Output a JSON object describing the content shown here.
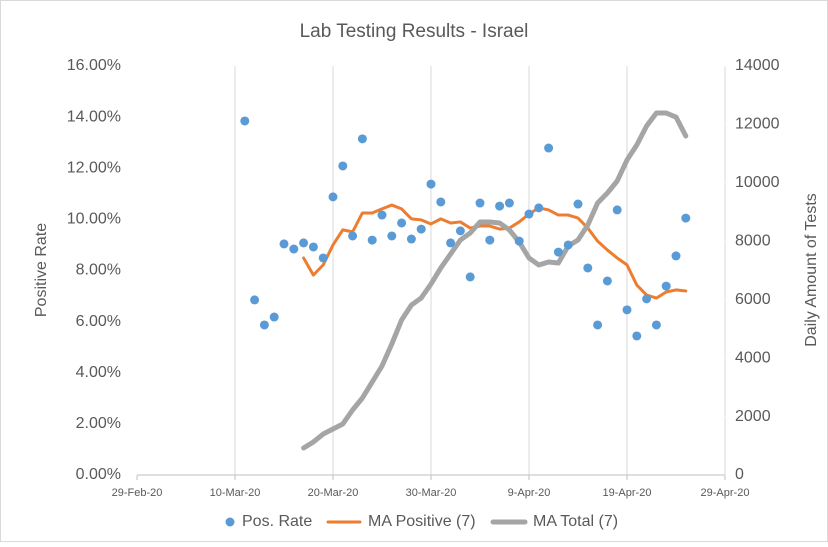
{
  "chart_data": {
    "type": "combo",
    "title": "Lab Testing Results - Israel",
    "y_label": "Positive Rate",
    "y2_label": "Daily Amount of Tests",
    "xlim": [
      "2020-02-29",
      "2020-04-29"
    ],
    "xticks": [
      {
        "value": "2020-02-29",
        "label": "29-Feb-20"
      },
      {
        "value": "2020-03-10",
        "label": "10-Mar-20"
      },
      {
        "value": "2020-03-20",
        "label": "20-Mar-20"
      },
      {
        "value": "2020-03-30",
        "label": "30-Mar-20"
      },
      {
        "value": "2020-04-09",
        "label": "9-Apr-20"
      },
      {
        "value": "2020-04-19",
        "label": "19-Apr-20"
      },
      {
        "value": "2020-04-29",
        "label": "29-Apr-20"
      }
    ],
    "ylim": [
      0,
      16
    ],
    "yticks": [
      {
        "value": 0,
        "label": "0.00%"
      },
      {
        "value": 2,
        "label": "2.00%"
      },
      {
        "value": 4,
        "label": "4.00%"
      },
      {
        "value": 6,
        "label": "6.00%"
      },
      {
        "value": 8,
        "label": "8.00%"
      },
      {
        "value": 10,
        "label": "10.00%"
      },
      {
        "value": 12,
        "label": "12.00%"
      },
      {
        "value": 14,
        "label": "14.00%"
      },
      {
        "value": 16,
        "label": "16.00%"
      }
    ],
    "y2lim": [
      0,
      14000
    ],
    "y2ticks": [
      0,
      2000,
      4000,
      6000,
      8000,
      10000,
      12000,
      14000
    ],
    "grid": "x",
    "legend": "bottom",
    "series": [
      {
        "name": "Pos. Rate",
        "type": "scatter",
        "color": "#5b9bd5",
        "x": [
          "2020-03-11",
          "2020-03-12",
          "2020-03-13",
          "2020-03-14",
          "2020-03-15",
          "2020-03-16",
          "2020-03-17",
          "2020-03-18",
          "2020-03-19",
          "2020-03-20",
          "2020-03-21",
          "2020-03-22",
          "2020-03-23",
          "2020-03-24",
          "2020-03-25",
          "2020-03-26",
          "2020-03-27",
          "2020-03-28",
          "2020-03-29",
          "2020-03-30",
          "2020-03-31",
          "2020-04-01",
          "2020-04-02",
          "2020-04-03",
          "2020-04-04",
          "2020-04-05",
          "2020-04-06",
          "2020-04-07",
          "2020-04-08",
          "2020-04-09",
          "2020-04-10",
          "2020-04-11",
          "2020-04-12",
          "2020-04-13",
          "2020-04-14",
          "2020-04-15",
          "2020-04-16",
          "2020-04-17",
          "2020-04-18",
          "2020-04-19",
          "2020-04-20",
          "2020-04-21",
          "2020-04-22",
          "2020-04-23",
          "2020-04-24",
          "2020-04-25"
        ],
        "values": [
          13.85,
          6.85,
          5.87,
          6.18,
          9.04,
          8.84,
          9.08,
          8.92,
          8.49,
          10.88,
          12.09,
          9.35,
          13.15,
          9.19,
          10.17,
          9.35,
          9.86,
          9.23,
          9.62,
          11.38,
          10.68,
          9.08,
          9.55,
          7.75,
          10.64,
          9.19,
          10.52,
          10.64,
          9.15,
          10.21,
          10.45,
          12.79,
          8.72,
          9.0,
          10.6,
          8.1,
          5.87,
          7.59,
          10.37,
          6.46,
          5.44,
          6.89,
          5.87,
          7.39,
          8.57,
          10.05
        ]
      },
      {
        "name": "MA Positive (7)",
        "type": "line",
        "color": "#ed7d31",
        "width": 3,
        "x": [
          "2020-03-17",
          "2020-03-18",
          "2020-03-19",
          "2020-03-20",
          "2020-03-21",
          "2020-03-22",
          "2020-03-23",
          "2020-03-24",
          "2020-03-25",
          "2020-03-26",
          "2020-03-27",
          "2020-03-28",
          "2020-03-29",
          "2020-03-30",
          "2020-03-31",
          "2020-04-01",
          "2020-04-02",
          "2020-04-03",
          "2020-04-04",
          "2020-04-05",
          "2020-04-06",
          "2020-04-07",
          "2020-04-08",
          "2020-04-09",
          "2020-04-10",
          "2020-04-11",
          "2020-04-12",
          "2020-04-13",
          "2020-04-14",
          "2020-04-15",
          "2020-04-16",
          "2020-04-17",
          "2020-04-18",
          "2020-04-19",
          "2020-04-20",
          "2020-04-21",
          "2020-04-22",
          "2020-04-23",
          "2020-04-24",
          "2020-04-25"
        ],
        "values": [
          8.49,
          7.82,
          8.22,
          9.0,
          9.59,
          9.51,
          10.25,
          10.25,
          10.41,
          10.56,
          10.41,
          10.02,
          9.98,
          9.82,
          10.02,
          9.86,
          9.9,
          9.66,
          9.74,
          9.74,
          9.62,
          9.66,
          9.9,
          10.21,
          10.45,
          10.37,
          10.17,
          10.17,
          10.05,
          9.66,
          9.15,
          8.8,
          8.49,
          8.22,
          7.43,
          7.04,
          6.92,
          7.16,
          7.24,
          7.2
        ]
      },
      {
        "name": "MA Total (7)",
        "type": "line",
        "axis": "y2",
        "color": "#a5a5a5",
        "width": 5,
        "x": [
          "2020-03-17",
          "2020-03-18",
          "2020-03-19",
          "2020-03-20",
          "2020-03-21",
          "2020-03-22",
          "2020-03-23",
          "2020-03-24",
          "2020-03-25",
          "2020-03-26",
          "2020-03-27",
          "2020-03-28",
          "2020-03-29",
          "2020-03-30",
          "2020-03-31",
          "2020-04-01",
          "2020-04-02",
          "2020-04-03",
          "2020-04-04",
          "2020-04-05",
          "2020-04-06",
          "2020-04-07",
          "2020-04-08",
          "2020-04-09",
          "2020-04-10",
          "2020-04-11",
          "2020-04-12",
          "2020-04-13",
          "2020-04-14",
          "2020-04-15",
          "2020-04-16",
          "2020-04-17",
          "2020-04-18",
          "2020-04-19",
          "2020-04-20",
          "2020-04-21",
          "2020-04-22",
          "2020-04-23",
          "2020-04-24",
          "2020-04-25"
        ],
        "values": [
          924,
          1130,
          1403,
          1575,
          1746,
          2225,
          2636,
          3183,
          3731,
          4484,
          5306,
          5819,
          6059,
          6538,
          7086,
          7565,
          8044,
          8284,
          8660,
          8660,
          8626,
          8387,
          7976,
          7428,
          7188,
          7291,
          7257,
          7839,
          8044,
          8558,
          9311,
          9653,
          10064,
          10782,
          11296,
          11946,
          12391,
          12391,
          12254,
          11604
        ]
      }
    ]
  }
}
